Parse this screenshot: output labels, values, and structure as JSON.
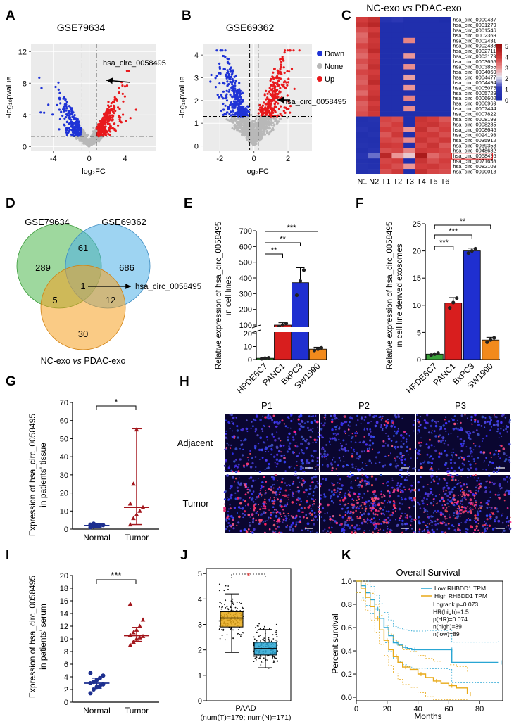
{
  "panel_letters": [
    "A",
    "B",
    "C",
    "D",
    "E",
    "F",
    "G",
    "H",
    "I",
    "J",
    "K"
  ],
  "colors": {
    "up": "#e8191c",
    "down": "#1f33d6",
    "none": "#b8b8b8",
    "green": "#3aa13a",
    "red": "#d81e1e",
    "blue": "#1f2fd0",
    "orange": "#f28a1c",
    "darkblue": "#1d2f8f",
    "darkred": "#a3161c",
    "gold": "#e8a917",
    "teal": "#29a6d3"
  },
  "chart_data": [
    {
      "id": "A",
      "type": "scatter",
      "title": "GSE79634",
      "xlabel": "log₂FC",
      "ylabel": "-log₁₀pvalue",
      "xticks": [
        "-4",
        "0",
        "4"
      ],
      "yticks": [
        "0",
        "4",
        "8",
        "12"
      ],
      "xlim": [
        -6.5,
        7.5
      ],
      "ylim": [
        -0.5,
        13
      ],
      "cutoffs": {
        "fc": 0.8,
        "p": 1.3
      },
      "annotation": "hsa_circ_0058495"
    },
    {
      "id": "B",
      "type": "scatter",
      "title": "GSE69362",
      "xlabel": "log₂FC",
      "ylabel": "-log₁₀pvalue",
      "xticks": [
        "-2",
        "0",
        "2"
      ],
      "yticks": [
        "0",
        "1",
        "2",
        "3",
        "4"
      ],
      "xlim": [
        -3,
        3.4
      ],
      "ylim": [
        -0.2,
        4.5
      ],
      "cutoffs": {
        "fc": 0.25,
        "p": 1.3
      },
      "legend": [
        "Down",
        "None",
        "Up"
      ],
      "annotation": "hsa_circ_0058495"
    },
    {
      "id": "C",
      "type": "heatmap",
      "title": "NC-exo vs PDAC-exo",
      "title_parts": [
        "NC-exo ",
        "vs",
        " PDAC-exo"
      ],
      "columns": [
        "N1",
        "N2",
        "T1",
        "T2",
        "T3",
        "T4",
        "T5",
        "T6"
      ],
      "rows": [
        "hsa_circ_0000437",
        "hsa_circ_0001279",
        "hsa_circ_0001546",
        "hsa_circ_0002369",
        "hsa_circ_0002431",
        "hsa_circ_0002438",
        "hsa_circ_0002711",
        "hsa_circ_0003179",
        "hsa_circ_0003655",
        "hsa_circ_0003855",
        "hsa_circ_0004069",
        "hsa_circ_0004477",
        "hsa_circ_0004494",
        "hsa_circ_0005075",
        "hsa_circ_0005729",
        "hsa_circ_0006602",
        "hsa_circ_0006969",
        "hsa_circ_0007444",
        "hsa_circ_0007822",
        "hsa_circ_0008199",
        "hsa_circ_0008285",
        "hsa_circ_0008645",
        "hsa_circ_0024193",
        "hsa_circ_0035912",
        "hsa_circ_0039353",
        "hsa_circ_0048682",
        "hsa_circ_0058495",
        "hsa_circ_0071653",
        "hsa_circ_0082109",
        "hsa_circ_0090013"
      ],
      "values": [
        [
          4.0,
          4.3,
          0.5,
          0.8,
          0.2,
          0.2,
          0.2,
          0.1
        ],
        [
          4.2,
          4.5,
          0.2,
          0.2,
          0.2,
          0.2,
          0.2,
          0.2
        ],
        [
          3.8,
          4.0,
          0.2,
          0.2,
          0.2,
          0.2,
          0.2,
          0.2
        ],
        [
          3.5,
          4.3,
          0.2,
          0.2,
          0.2,
          0.2,
          0.2,
          0.2
        ],
        [
          3.6,
          4.1,
          0.2,
          0.2,
          3.2,
          0.2,
          0.2,
          0.2
        ],
        [
          3.9,
          4.2,
          0.2,
          0.2,
          0.2,
          0.2,
          0.2,
          0.2
        ],
        [
          3.7,
          4.4,
          0.2,
          0.2,
          0.2,
          0.2,
          0.2,
          0.2
        ],
        [
          3.5,
          4.0,
          0.2,
          0.2,
          3.0,
          0.2,
          0.2,
          0.2
        ],
        [
          3.8,
          4.1,
          0.2,
          0.2,
          0.2,
          0.2,
          0.2,
          0.2
        ],
        [
          3.6,
          4.3,
          0.2,
          0.2,
          3.1,
          0.2,
          0.2,
          0.2
        ],
        [
          3.9,
          4.0,
          0.2,
          0.2,
          0.2,
          0.2,
          0.2,
          0.2
        ],
        [
          3.7,
          4.2,
          0.2,
          0.2,
          2.9,
          0.2,
          0.2,
          0.2
        ],
        [
          3.6,
          4.4,
          0.2,
          0.2,
          0.2,
          0.2,
          0.2,
          0.2
        ],
        [
          3.8,
          4.0,
          0.2,
          0.2,
          3.0,
          0.2,
          0.2,
          0.2
        ],
        [
          3.5,
          4.1,
          0.2,
          0.2,
          0.2,
          0.2,
          0.2,
          0.2
        ],
        [
          3.9,
          4.3,
          0.2,
          0.2,
          3.2,
          0.2,
          0.2,
          0.2
        ],
        [
          3.6,
          4.0,
          0.2,
          0.2,
          0.2,
          0.2,
          0.2,
          0.2
        ],
        [
          3.7,
          4.2,
          0.2,
          0.2,
          3.1,
          0.2,
          0.2,
          0.2
        ],
        [
          3.8,
          4.1,
          0.2,
          0.2,
          0.2,
          0.2,
          0.2,
          0.2
        ],
        [
          0.3,
          0.5,
          3.9,
          3.8,
          0.2,
          4.2,
          4.0,
          3.7
        ],
        [
          0.4,
          0.4,
          3.8,
          4.0,
          0.2,
          4.1,
          4.2,
          3.9
        ],
        [
          0.6,
          0.3,
          4.0,
          3.9,
          3.0,
          4.3,
          3.8,
          4.0
        ],
        [
          0.3,
          0.5,
          3.7,
          4.1,
          0.2,
          4.0,
          4.1,
          3.8
        ],
        [
          0.4,
          0.3,
          3.9,
          3.8,
          3.1,
          4.2,
          3.9,
          4.1
        ],
        [
          0.5,
          0.4,
          4.1,
          4.0,
          0.2,
          3.9,
          4.2,
          3.7
        ],
        [
          0.3,
          0.6,
          3.8,
          3.9,
          3.2,
          4.1,
          4.0,
          3.9
        ],
        [
          0.6,
          1.5,
          4.5,
          3.0,
          2.5,
          4.8,
          3.5,
          3.8
        ],
        [
          0.4,
          0.3,
          3.9,
          4.0,
          0.2,
          4.2,
          3.8,
          4.0
        ],
        [
          0.5,
          0.4,
          4.0,
          3.8,
          3.0,
          4.0,
          4.1,
          3.9
        ],
        [
          0.3,
          0.5,
          3.8,
          4.1,
          0.2,
          4.3,
          3.9,
          3.8
        ]
      ],
      "scale_ticks": [
        "5",
        "4",
        "3",
        "2",
        "1",
        "0"
      ],
      "vmin": 0,
      "vmax": 5.2,
      "highlight": "hsa_circ_0058495"
    },
    {
      "id": "D",
      "type": "venn",
      "sets": [
        "GSE79634",
        "GSE69362",
        "NC-exo vs PDAC-exo"
      ],
      "set_label_parts": [
        "NC-exo ",
        "vs",
        " PDAC-exo"
      ],
      "counts": {
        "a": "289",
        "b": "686",
        "c": "30",
        "ab": "61",
        "ac": "5",
        "bc": "12",
        "abc": "1"
      },
      "annotation": "hsa_circ_0058495"
    },
    {
      "id": "E",
      "type": "bar",
      "categories": [
        "HPDE6C7",
        "PANC1",
        "BxPC3",
        "SW1990"
      ],
      "values": [
        1,
        100,
        370,
        8
      ],
      "points": [
        [
          0.6,
          1.0,
          1.3
        ],
        [
          90,
          100,
          110
        ],
        [
          290,
          380,
          450
        ],
        [
          7,
          8,
          9
        ]
      ],
      "errors": [
        0.4,
        15,
        95,
        1.5
      ],
      "ylabel_lines": [
        "Relative expression of hsa_circ_0058495",
        "in cell lines"
      ],
      "yticks_top": [
        "100",
        "200",
        "300",
        "400",
        "500",
        "600",
        "700"
      ],
      "yticks_bottom": [
        "0",
        "10",
        "20"
      ],
      "broken_axis": [
        20,
        100
      ],
      "significance": [
        [
          "PANC1",
          "**"
        ],
        [
          "BxPC3",
          "**"
        ],
        [
          "SW1990",
          "***"
        ]
      ]
    },
    {
      "id": "F",
      "type": "bar",
      "categories": [
        "HPDE6C7",
        "PANC1",
        "BxPC3",
        "SW1990"
      ],
      "values": [
        1.0,
        10.4,
        20.0,
        3.6
      ],
      "points": [
        [
          0.8,
          1.0,
          1.2
        ],
        [
          9.5,
          10.5,
          11.3
        ],
        [
          19.6,
          20.0,
          20.4
        ],
        [
          3.2,
          3.6,
          4.0
        ]
      ],
      "errors": [
        0.2,
        1.0,
        0.5,
        0.5
      ],
      "ylabel_lines": [
        "Relative expression of hsa_circ_0058495",
        "in cell line derived exosomes"
      ],
      "yticks": [
        "0",
        "5",
        "10",
        "15",
        "20",
        "25"
      ],
      "ylim": [
        0,
        25
      ],
      "significance": [
        [
          "PANC1",
          "***"
        ],
        [
          "BxPC3",
          "***"
        ],
        [
          "SW1990",
          "**"
        ]
      ]
    },
    {
      "id": "G",
      "type": "scatter",
      "categories": [
        "Normal",
        "Tumor"
      ],
      "points": [
        [
          1.0,
          1.4,
          1.8,
          2.0,
          2.2,
          2.5,
          3.0,
          1.6
        ],
        [
          2.5,
          6.0,
          8.0,
          10.0,
          12.0,
          14.0,
          25.0,
          55.0
        ]
      ],
      "median": [
        2.0,
        12.0
      ],
      "range": [
        [
          1.0,
          3.0
        ],
        [
          2.5,
          55.5
        ]
      ],
      "ylabel_lines": [
        "Expression of hsa_circ_0058495",
        "in patients' tissue"
      ],
      "yticks": [
        "0",
        "10",
        "20",
        "30",
        "40",
        "50",
        "60",
        "70"
      ],
      "ylim": [
        0,
        70
      ],
      "significance": "*"
    },
    {
      "id": "H",
      "type": "scatter",
      "categories": [
        "Normal",
        "Tumor"
      ],
      "points": [
        [
          1.4,
          2.0,
          2.4,
          2.6,
          2.8,
          3.0,
          3.2,
          3.5,
          3.8,
          4.2,
          4.6
        ],
        [
          9.0,
          9.5,
          10.0,
          10.2,
          10.4,
          10.6,
          11.0,
          11.4,
          12.0,
          13.0,
          15.5
        ]
      ],
      "mean": [
        3.0,
        10.5
      ],
      "error": [
        [
          2.2,
          3.8
        ],
        [
          9.6,
          11.8
        ]
      ],
      "ylabel_lines": [
        "Expression of hsa_circ_0058495",
        "in patients' serum"
      ],
      "yticks": [
        "0",
        "2",
        "4",
        "6",
        "8",
        "10",
        "12",
        "14",
        "16",
        "18",
        "20"
      ],
      "ylim": [
        0,
        20
      ],
      "significance": "***"
    },
    {
      "id": "J",
      "type": "box",
      "xlabel": "PAAD",
      "xsub": "(num(T)=179; num(N)=171)",
      "yticks": [
        "0",
        "1",
        "2",
        "3",
        "4",
        "5"
      ],
      "ylim": [
        0,
        5.2
      ],
      "boxes": [
        {
          "group": "T",
          "q1": 2.9,
          "median": 3.25,
          "q3": 3.5,
          "whisker_low": 1.9,
          "whisker_high": 4.2
        },
        {
          "group": "N",
          "q1": 1.8,
          "median": 2.05,
          "q3": 2.3,
          "whisker_low": 1.3,
          "whisker_high": 2.8
        }
      ],
      "significance": "*"
    },
    {
      "id": "K",
      "type": "line",
      "title": "Overall Survival",
      "xlabel": "Months",
      "ylabel": "Percent survival",
      "xticks": [
        "0",
        "20",
        "40",
        "60",
        "80"
      ],
      "yticks": [
        "0.0",
        "0.2",
        "0.4",
        "0.6",
        "0.8",
        "1.0"
      ],
      "xlim": [
        0,
        95
      ],
      "ylim": [
        -0.03,
        1.0
      ],
      "legend": [
        "Low RHBDD1 TPM",
        "High RHBDD1 TPM"
      ],
      "stats": [
        "Logrank p=0.073",
        "HR(high)=1.5",
        "p(HR)=0.074",
        "n(high)=89",
        "n(low)=89"
      ],
      "series": [
        {
          "name": "Low RHBDD1 TPM",
          "x": [
            0,
            3,
            6,
            9,
            12,
            15,
            18,
            21,
            24,
            27,
            30,
            33,
            36,
            45,
            60,
            62,
            92
          ],
          "y": [
            1.0,
            0.96,
            0.9,
            0.84,
            0.76,
            0.68,
            0.6,
            0.53,
            0.47,
            0.45,
            0.43,
            0.42,
            0.41,
            0.41,
            0.41,
            0.3,
            0.3
          ]
        },
        {
          "name": "High RHBDD1 TPM",
          "x": [
            0,
            3,
            6,
            9,
            12,
            15,
            18,
            21,
            24,
            27,
            30,
            35,
            40,
            45,
            50,
            55,
            60,
            65,
            72
          ],
          "y": [
            1.0,
            0.94,
            0.86,
            0.78,
            0.68,
            0.58,
            0.49,
            0.41,
            0.35,
            0.3,
            0.26,
            0.24,
            0.2,
            0.17,
            0.14,
            0.12,
            0.1,
            0.08,
            0.03
          ]
        }
      ]
    }
  ],
  "panel_i": {
    "columns": [
      "P1",
      "P2",
      "P3"
    ],
    "rows": [
      "Adjacent",
      "Tumor"
    ]
  }
}
